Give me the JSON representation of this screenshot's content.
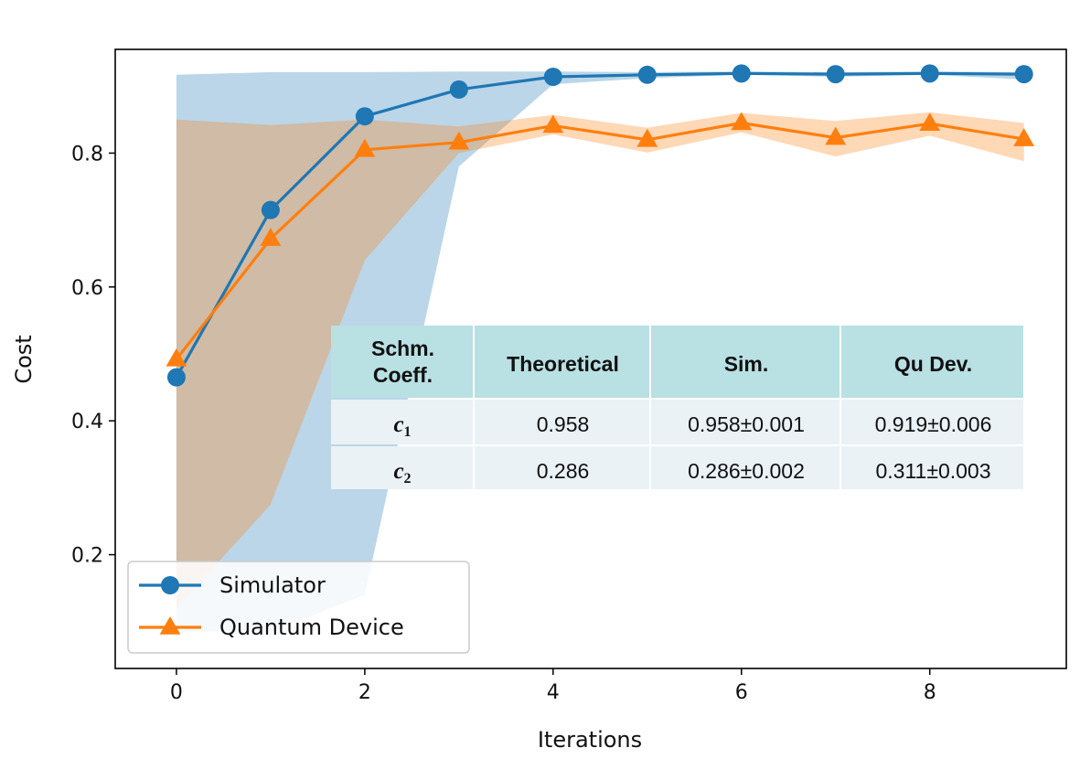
{
  "chart_data": {
    "type": "line",
    "xlabel": "Iterations",
    "ylabel": "Cost",
    "xlim": [
      -0.65,
      9.45
    ],
    "ylim": [
      0.03,
      0.955
    ],
    "xticks": [
      0,
      2,
      4,
      6,
      8
    ],
    "yticks": [
      0.2,
      0.4,
      0.6,
      0.8
    ],
    "grid": false,
    "legend_position": "lower-left",
    "series": [
      {
        "name": "Simulator",
        "color": "#1f77b4",
        "marker": "circle",
        "x": [
          0,
          1,
          2,
          3,
          4,
          5,
          6,
          7,
          8,
          9
        ],
        "y": [
          0.465,
          0.715,
          0.855,
          0.895,
          0.914,
          0.917,
          0.919,
          0.918,
          0.919,
          0.918
        ],
        "band_lower": [
          0.085,
          0.085,
          0.14,
          0.78,
          0.903,
          0.912,
          0.917,
          0.914,
          0.917,
          0.91
        ],
        "band_upper": [
          0.917,
          0.921,
          0.921,
          0.922,
          0.922,
          0.921,
          0.922,
          0.921,
          0.922,
          0.921
        ]
      },
      {
        "name": "Quantum Device",
        "color": "#ff7f0e",
        "marker": "triangle",
        "x": [
          0,
          1,
          2,
          3,
          4,
          5,
          6,
          7,
          8,
          9
        ],
        "y": [
          0.492,
          0.672,
          0.805,
          0.816,
          0.841,
          0.82,
          0.845,
          0.823,
          0.844,
          0.821
        ],
        "band_lower": [
          0.12,
          0.275,
          0.64,
          0.8,
          0.828,
          0.801,
          0.831,
          0.795,
          0.826,
          0.788
        ],
        "band_upper": [
          0.85,
          0.842,
          0.85,
          0.84,
          0.857,
          0.838,
          0.86,
          0.848,
          0.861,
          0.845
        ]
      }
    ],
    "table": {
      "headers": [
        [
          "Schm.",
          "Coeff."
        ],
        [
          "Theoretical"
        ],
        [
          "Sim."
        ],
        [
          "Qu Dev."
        ]
      ],
      "rows": [
        {
          "coef": "c",
          "sub": "1",
          "theoretical": "0.958",
          "sim": "0.958±0.001",
          "qu_dev": "0.919±0.006"
        },
        {
          "coef": "c",
          "sub": "2",
          "theoretical": "0.286",
          "sim": "0.286±0.002",
          "qu_dev": "0.311±0.003"
        }
      ],
      "header_color": "#b9e0e3",
      "row_color": "#eaf2f6"
    }
  }
}
